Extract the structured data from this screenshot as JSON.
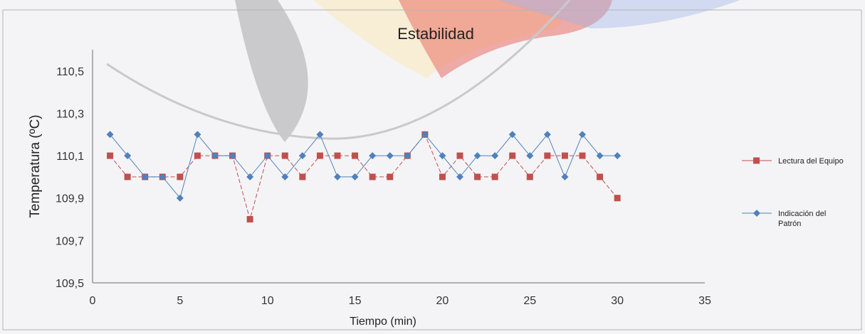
{
  "chart_data": {
    "type": "line",
    "title": "Estabilidad",
    "xlabel": "Tiempo (min)",
    "ylabel": "Temperatura   (ºC)",
    "xlim": [
      0,
      35
    ],
    "ylim": [
      109.5,
      110.6
    ],
    "x_ticks": [
      {
        "value": 0,
        "label": "0"
      },
      {
        "value": 5,
        "label": "5"
      },
      {
        "value": 10,
        "label": "10"
      },
      {
        "value": 15,
        "label": "15"
      },
      {
        "value": 20,
        "label": "20"
      },
      {
        "value": 25,
        "label": "25"
      },
      {
        "value": 30,
        "label": "30"
      },
      {
        "value": 35,
        "label": "35"
      }
    ],
    "y_ticks": [
      {
        "value": 109.5,
        "label": "109,5"
      },
      {
        "value": 109.7,
        "label": "109,7"
      },
      {
        "value": 109.9,
        "label": "109,9"
      },
      {
        "value": 110.1,
        "label": "110,1"
      },
      {
        "value": 110.3,
        "label": "110,3"
      },
      {
        "value": 110.5,
        "label": "110,5"
      }
    ],
    "grid": false,
    "legend_position": "right",
    "x": [
      1,
      2,
      3,
      4,
      5,
      6,
      7,
      8,
      9,
      10,
      11,
      12,
      13,
      14,
      15,
      16,
      17,
      18,
      19,
      20,
      21,
      22,
      23,
      24,
      25,
      26,
      27,
      28,
      29,
      30
    ],
    "series": [
      {
        "name": "Lectura del Equipo",
        "color": "#c0504d",
        "marker": "square",
        "values": [
          110.1,
          110.0,
          110.0,
          110.0,
          110.0,
          110.1,
          110.1,
          110.1,
          109.8,
          110.1,
          110.1,
          110.0,
          110.1,
          110.1,
          110.1,
          110.0,
          110.0,
          110.1,
          110.2,
          110.0,
          110.1,
          110.0,
          110.0,
          110.1,
          110.0,
          110.1,
          110.1,
          110.1,
          110.0,
          109.9
        ]
      },
      {
        "name": "Indicación del Patrón",
        "legend_lines": [
          "Indicación del",
          "Patrón"
        ],
        "color": "#4f81bd",
        "marker": "diamond",
        "values": [
          110.2,
          110.1,
          110.0,
          110.0,
          109.9,
          110.2,
          110.1,
          110.1,
          110.0,
          110.1,
          110.0,
          110.1,
          110.2,
          110.0,
          110.0,
          110.1,
          110.1,
          110.1,
          110.2,
          110.1,
          110.0,
          110.1,
          110.1,
          110.2,
          110.1,
          110.2,
          110.0,
          110.2,
          110.1,
          110.1
        ]
      }
    ]
  }
}
